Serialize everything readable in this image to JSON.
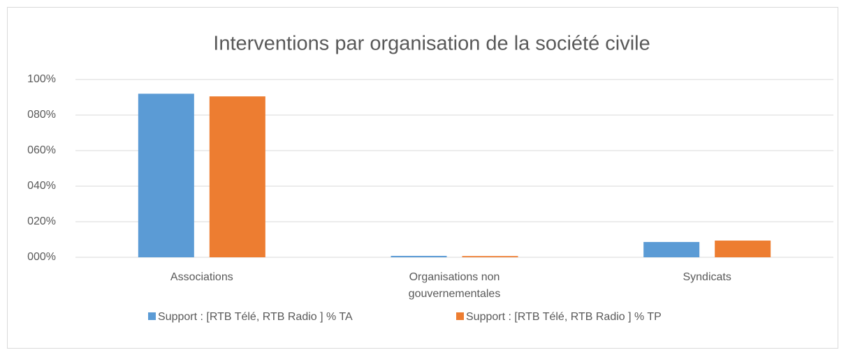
{
  "chart_data": {
    "type": "bar",
    "title": "Interventions par  organisation de la société civile",
    "categories": [
      "Associations",
      "Organisations non gouvernementales",
      "Syndicats"
    ],
    "series": [
      {
        "name": "Support : [RTB Télé, RTB Radio ] % TA",
        "color": "#5b9bd5",
        "values": [
          92,
          0.8,
          8.6
        ]
      },
      {
        "name": "Support : [RTB Télé, RTB Radio ] % TP",
        "color": "#ed7d31",
        "values": [
          90.5,
          0.7,
          9.4
        ]
      }
    ],
    "ylim": [
      0,
      100
    ],
    "yticks": [
      {
        "value": 0,
        "label": "000%"
      },
      {
        "value": 20,
        "label": "020%"
      },
      {
        "value": 40,
        "label": "040%"
      },
      {
        "value": 60,
        "label": "060%"
      },
      {
        "value": 80,
        "label": "080%"
      },
      {
        "value": 100,
        "label": "100%"
      }
    ],
    "grid": true,
    "legend": "bottom"
  }
}
